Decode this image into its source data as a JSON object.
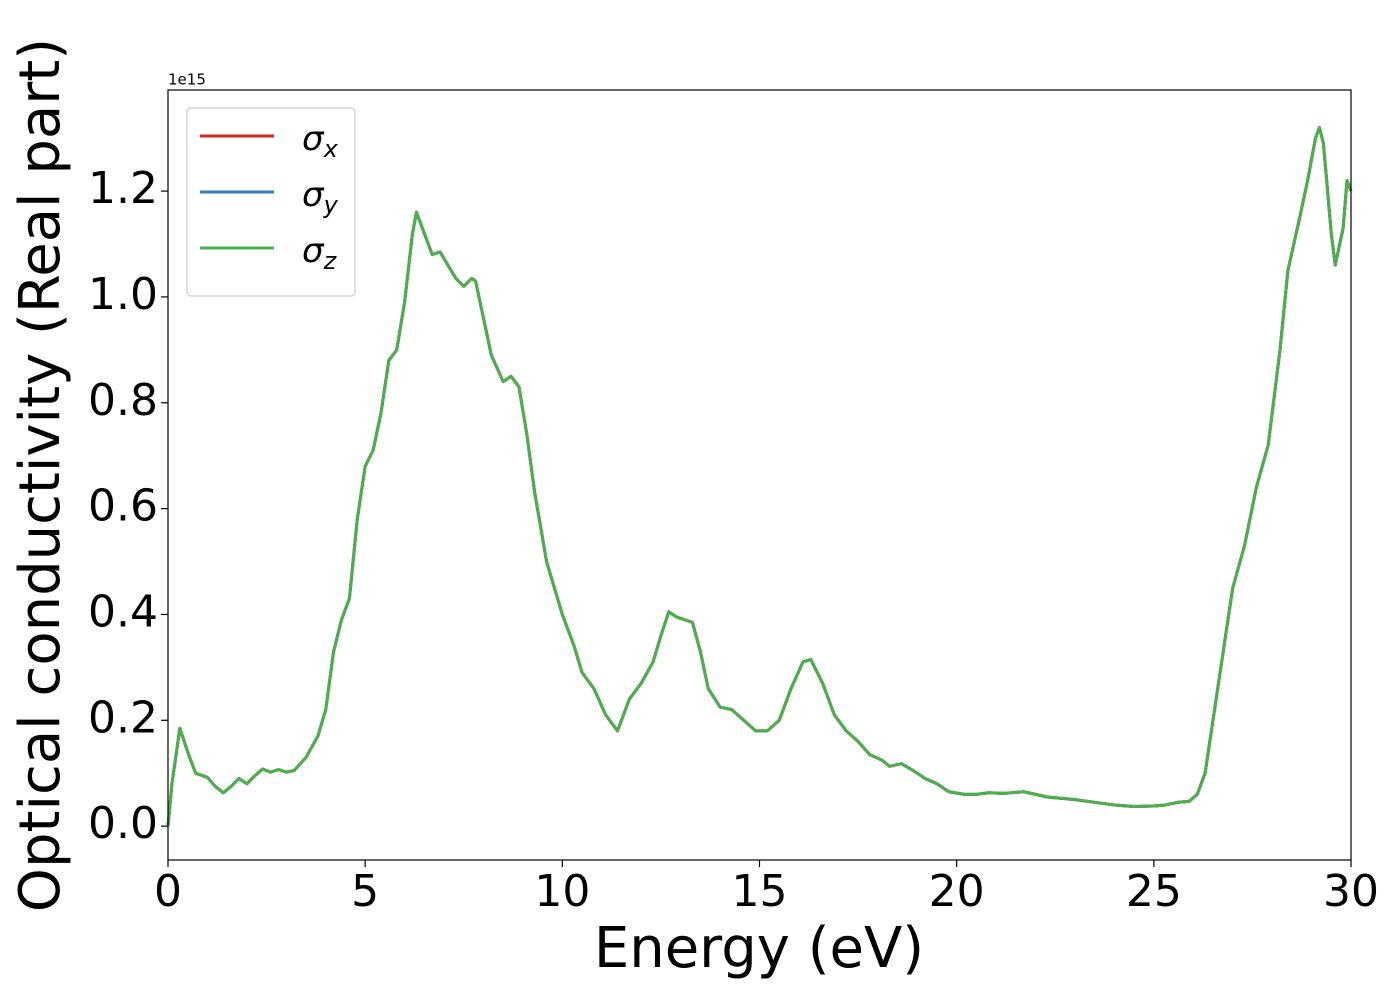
{
  "chart_data": {
    "type": "line",
    "x_label": "Energy (eV)",
    "y_label": "Optical conductivity (Real part)",
    "offset_text": "1e15",
    "xlim": [
      0,
      30
    ],
    "xticks": [
      0,
      5,
      10,
      15,
      20,
      25,
      30
    ],
    "ylim": [
      -0.064,
      1.391
    ],
    "yticks": [
      {
        "value": 0,
        "label": "0.0"
      },
      0.2,
      0.4,
      0.6,
      0.8,
      {
        "value": 1,
        "label": "1.0"
      },
      1.2
    ],
    "legend": "upper left",
    "x": [
      0,
      0.1,
      0.3,
      0.5,
      0.7,
      1.0,
      1.2,
      1.4,
      1.6,
      1.8,
      2.0,
      2.2,
      2.4,
      2.6,
      2.8,
      3.0,
      3.2,
      3.5,
      3.8,
      4.0,
      4.2,
      4.4,
      4.6,
      4.8,
      5.0,
      5.2,
      5.4,
      5.6,
      5.8,
      6.0,
      6.2,
      6.3,
      6.5,
      6.7,
      6.9,
      7.1,
      7.3,
      7.5,
      7.7,
      7.8,
      8.0,
      8.2,
      8.5,
      8.7,
      8.9,
      9.1,
      9.3,
      9.6,
      10.0,
      10.3,
      10.5,
      10.8,
      11.1,
      11.4,
      11.7,
      12.0,
      12.3,
      12.5,
      12.7,
      12.9,
      13.1,
      13.3,
      13.5,
      13.7,
      14.0,
      14.3,
      14.6,
      14.9,
      15.2,
      15.5,
      15.8,
      16.1,
      16.3,
      16.6,
      16.9,
      17.2,
      17.5,
      17.8,
      18.1,
      18.3,
      18.6,
      18.9,
      19.2,
      19.5,
      19.8,
      20.2,
      20.5,
      20.8,
      21.2,
      21.7,
      22.0,
      22.3,
      23.0,
      23.5,
      24.0,
      24.5,
      25.0,
      25.3,
      25.6,
      25.9,
      26.1,
      26.3,
      26.5,
      26.8,
      27.0,
      27.3,
      27.6,
      27.9,
      28.2,
      28.4,
      28.7,
      28.9,
      29.1,
      29.2,
      29.3,
      29.5,
      29.6,
      29.8,
      29.9,
      30.0
    ],
    "series": [
      {
        "name": "σx",
        "color": "#d62728",
        "values": [
          0,
          0.08,
          0.185,
          0.14,
          0.1,
          0.092,
          0.075,
          0.063,
          0.075,
          0.09,
          0.08,
          0.095,
          0.108,
          0.102,
          0.107,
          0.102,
          0.105,
          0.13,
          0.17,
          0.22,
          0.33,
          0.39,
          0.43,
          0.58,
          0.68,
          0.71,
          0.78,
          0.88,
          0.9,
          0.99,
          1.12,
          1.16,
          1.12,
          1.08,
          1.085,
          1.06,
          1.035,
          1.02,
          1.035,
          1.03,
          0.96,
          0.89,
          0.84,
          0.85,
          0.83,
          0.74,
          0.63,
          0.5,
          0.4,
          0.34,
          0.29,
          0.26,
          0.21,
          0.18,
          0.24,
          0.27,
          0.31,
          0.36,
          0.405,
          0.395,
          0.39,
          0.385,
          0.33,
          0.26,
          0.225,
          0.22,
          0.2,
          0.18,
          0.18,
          0.2,
          0.26,
          0.31,
          0.315,
          0.27,
          0.21,
          0.18,
          0.16,
          0.135,
          0.125,
          0.113,
          0.118,
          0.105,
          0.09,
          0.08,
          0.065,
          0.06,
          0.06,
          0.063,
          0.062,
          0.065,
          0.06,
          0.055,
          0.05,
          0.045,
          0.04,
          0.037,
          0.038,
          0.04,
          0.045,
          0.047,
          0.06,
          0.1,
          0.2,
          0.35,
          0.45,
          0.53,
          0.64,
          0.72,
          0.9,
          1.05,
          1.15,
          1.22,
          1.3,
          1.32,
          1.29,
          1.12,
          1.06,
          1.13,
          1.22,
          1.2
        ]
      },
      {
        "name": "σy",
        "color": "#3a7db8",
        "values": [
          0,
          0.08,
          0.185,
          0.14,
          0.1,
          0.092,
          0.075,
          0.063,
          0.075,
          0.09,
          0.08,
          0.095,
          0.108,
          0.102,
          0.107,
          0.102,
          0.105,
          0.13,
          0.17,
          0.22,
          0.33,
          0.39,
          0.43,
          0.58,
          0.68,
          0.71,
          0.78,
          0.88,
          0.9,
          0.99,
          1.12,
          1.16,
          1.12,
          1.08,
          1.085,
          1.06,
          1.035,
          1.02,
          1.035,
          1.03,
          0.96,
          0.89,
          0.84,
          0.85,
          0.83,
          0.74,
          0.63,
          0.5,
          0.4,
          0.34,
          0.29,
          0.26,
          0.21,
          0.18,
          0.24,
          0.27,
          0.31,
          0.36,
          0.405,
          0.395,
          0.39,
          0.385,
          0.33,
          0.26,
          0.225,
          0.22,
          0.2,
          0.18,
          0.18,
          0.2,
          0.26,
          0.31,
          0.315,
          0.27,
          0.21,
          0.18,
          0.16,
          0.135,
          0.125,
          0.113,
          0.118,
          0.105,
          0.09,
          0.08,
          0.065,
          0.06,
          0.06,
          0.063,
          0.062,
          0.065,
          0.06,
          0.055,
          0.05,
          0.045,
          0.04,
          0.037,
          0.038,
          0.04,
          0.045,
          0.047,
          0.06,
          0.1,
          0.2,
          0.35,
          0.45,
          0.53,
          0.64,
          0.72,
          0.9,
          1.05,
          1.15,
          1.22,
          1.3,
          1.32,
          1.29,
          1.12,
          1.06,
          1.13,
          1.22,
          1.2
        ]
      },
      {
        "name": "σz",
        "color": "#4daf4a",
        "values": [
          0,
          0.08,
          0.185,
          0.14,
          0.1,
          0.092,
          0.075,
          0.063,
          0.075,
          0.09,
          0.08,
          0.095,
          0.108,
          0.102,
          0.107,
          0.102,
          0.105,
          0.13,
          0.17,
          0.22,
          0.33,
          0.39,
          0.43,
          0.58,
          0.68,
          0.71,
          0.78,
          0.88,
          0.9,
          0.99,
          1.12,
          1.16,
          1.12,
          1.08,
          1.085,
          1.06,
          1.035,
          1.02,
          1.035,
          1.03,
          0.96,
          0.89,
          0.84,
          0.85,
          0.83,
          0.74,
          0.63,
          0.5,
          0.4,
          0.34,
          0.29,
          0.26,
          0.21,
          0.18,
          0.24,
          0.27,
          0.31,
          0.36,
          0.405,
          0.395,
          0.39,
          0.385,
          0.33,
          0.26,
          0.225,
          0.22,
          0.2,
          0.18,
          0.18,
          0.2,
          0.26,
          0.31,
          0.315,
          0.27,
          0.21,
          0.18,
          0.16,
          0.135,
          0.125,
          0.113,
          0.118,
          0.105,
          0.09,
          0.08,
          0.065,
          0.06,
          0.06,
          0.063,
          0.062,
          0.065,
          0.06,
          0.055,
          0.05,
          0.045,
          0.04,
          0.037,
          0.038,
          0.04,
          0.045,
          0.047,
          0.06,
          0.1,
          0.2,
          0.35,
          0.45,
          0.53,
          0.64,
          0.72,
          0.9,
          1.05,
          1.15,
          1.22,
          1.3,
          1.32,
          1.29,
          1.12,
          1.06,
          1.13,
          1.22,
          1.2
        ]
      }
    ]
  }
}
